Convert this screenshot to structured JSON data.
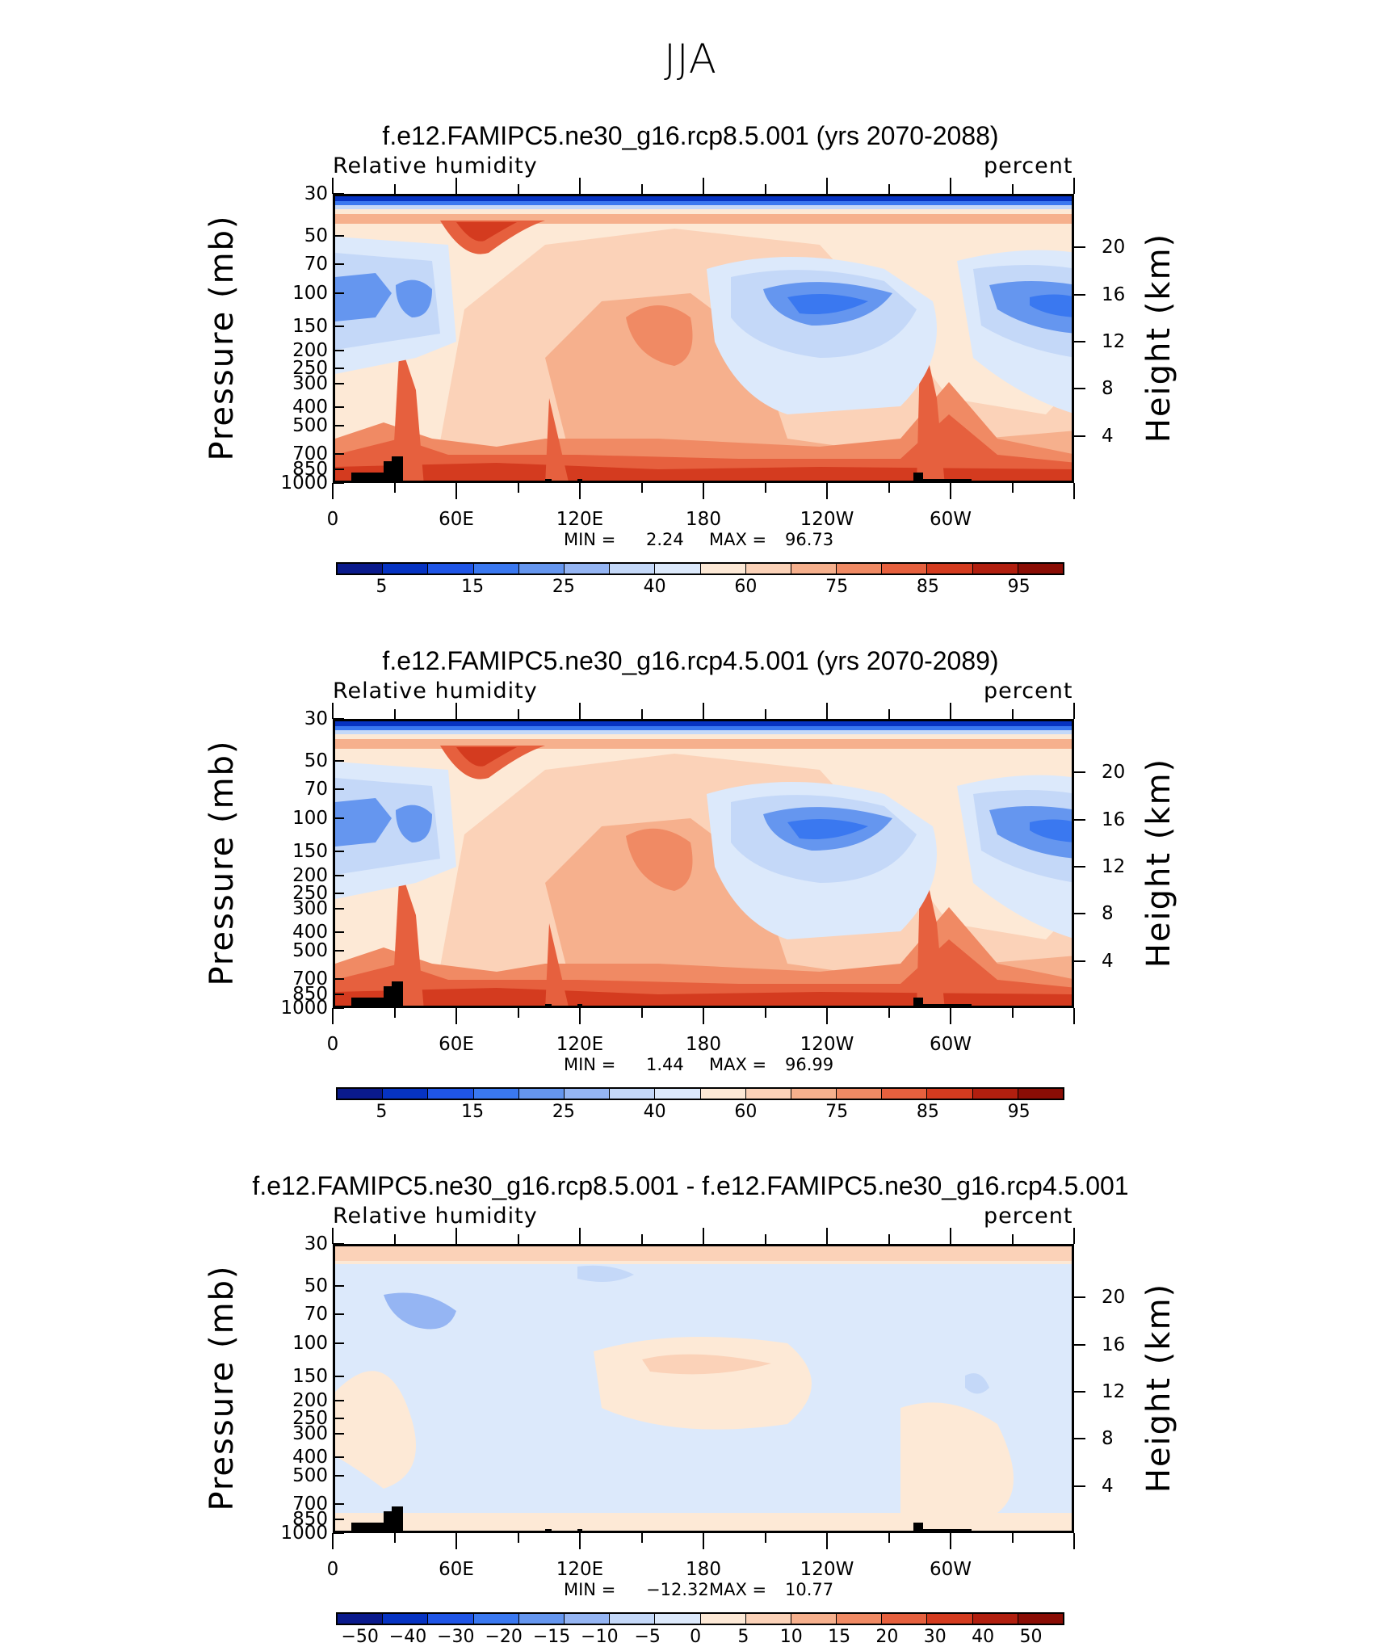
{
  "page_title": "JJA",
  "chart_data": [
    {
      "type": "heatmap",
      "title": "f.e12.FAMIPC5.ne30_g16.rcp8.5.001 (yrs 2070-2088)",
      "left_label": "Relative humidity",
      "right_label": "percent",
      "ylabel": "Pressure (mb)",
      "ylabel_right": "Height (km)",
      "x_ticks": [
        "0",
        "60E",
        "120E",
        "180",
        "120W",
        "60W"
      ],
      "y_ticks": [
        "30",
        "50",
        "70",
        "100",
        "150",
        "200",
        "250",
        "300",
        "400",
        "500",
        "700",
        "850",
        "1000"
      ],
      "y_right_ticks": [
        "20",
        "16",
        "12",
        "8",
        "4"
      ],
      "min_label": "MIN =",
      "min_value": "2.24",
      "max_label": "MAX =",
      "max_value": "96.73",
      "colorbar_labels": [
        "5",
        "15",
        "25",
        "40",
        "60",
        "75",
        "85",
        "95"
      ],
      "colorbar_colors": [
        "#0a1a8c",
        "#0633c2",
        "#1f55e6",
        "#3a78f0",
        "#6596ef",
        "#95b5f3",
        "#c4d8f8",
        "#dce9fb",
        "#fde9d6",
        "#fbd2b8",
        "#f6b08d",
        "#f08a64",
        "#e6603e",
        "#d43b1f",
        "#b11f0f",
        "#8a0d05"
      ]
    },
    {
      "type": "heatmap",
      "title": "f.e12.FAMIPC5.ne30_g16.rcp4.5.001 (yrs 2070-2089)",
      "left_label": "Relative humidity",
      "right_label": "percent",
      "ylabel": "Pressure (mb)",
      "ylabel_right": "Height (km)",
      "x_ticks": [
        "0",
        "60E",
        "120E",
        "180",
        "120W",
        "60W"
      ],
      "y_ticks": [
        "30",
        "50",
        "70",
        "100",
        "150",
        "200",
        "250",
        "300",
        "400",
        "500",
        "700",
        "850",
        "1000"
      ],
      "y_right_ticks": [
        "20",
        "16",
        "12",
        "8",
        "4"
      ],
      "min_label": "MIN =",
      "min_value": "1.44",
      "max_label": "MAX =",
      "max_value": "96.99",
      "colorbar_labels": [
        "5",
        "15",
        "25",
        "40",
        "60",
        "75",
        "85",
        "95"
      ],
      "colorbar_colors": [
        "#0a1a8c",
        "#0633c2",
        "#1f55e6",
        "#3a78f0",
        "#6596ef",
        "#95b5f3",
        "#c4d8f8",
        "#dce9fb",
        "#fde9d6",
        "#fbd2b8",
        "#f6b08d",
        "#f08a64",
        "#e6603e",
        "#d43b1f",
        "#b11f0f",
        "#8a0d05"
      ]
    },
    {
      "type": "heatmap",
      "title": "f.e12.FAMIPC5.ne30_g16.rcp8.5.001 - f.e12.FAMIPC5.ne30_g16.rcp4.5.001",
      "left_label": "Relative humidity",
      "right_label": "percent",
      "ylabel": "Pressure (mb)",
      "ylabel_right": "Height (km)",
      "x_ticks": [
        "0",
        "60E",
        "120E",
        "180",
        "120W",
        "60W"
      ],
      "y_ticks": [
        "30",
        "50",
        "70",
        "100",
        "150",
        "200",
        "250",
        "300",
        "400",
        "500",
        "700",
        "850",
        "1000"
      ],
      "y_right_ticks": [
        "20",
        "16",
        "12",
        "8",
        "4"
      ],
      "min_label": "MIN =",
      "min_value": "−12.32",
      "max_label": "MAX =",
      "max_value": "10.77",
      "colorbar_labels": [
        "−50",
        "−40",
        "−30",
        "−20",
        "−15",
        "−10",
        "−5",
        "0",
        "5",
        "10",
        "15",
        "20",
        "30",
        "40",
        "50"
      ],
      "colorbar_colors": [
        "#0a1a8c",
        "#0633c2",
        "#1f55e6",
        "#3a78f0",
        "#6596ef",
        "#95b5f3",
        "#c4d8f8",
        "#dce9fb",
        "#fde9d6",
        "#fbd2b8",
        "#f6b08d",
        "#f08a64",
        "#e6603e",
        "#d43b1f",
        "#b11f0f",
        "#8a0d05"
      ]
    }
  ]
}
